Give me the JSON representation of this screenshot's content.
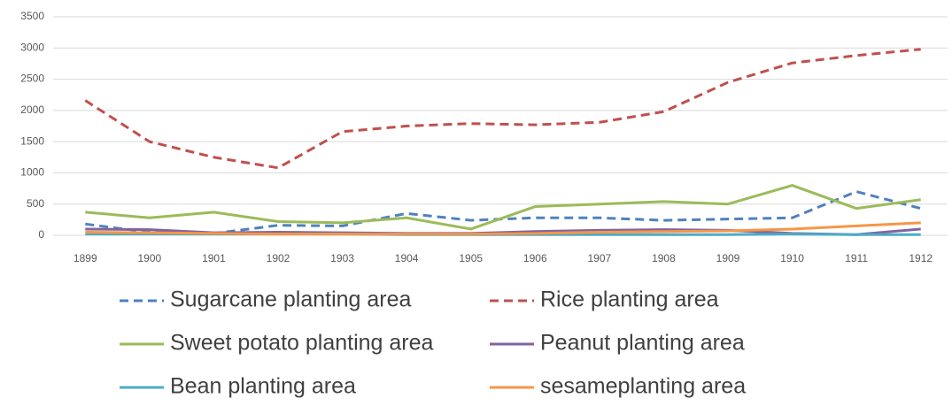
{
  "chart_data": {
    "type": "line",
    "categories": [
      "1899",
      "1900",
      "1901",
      "1902",
      "1903",
      "1904",
      "1905",
      "1906",
      "1907",
      "1908",
      "1909",
      "1910",
      "1911",
      "1912"
    ],
    "series": [
      {
        "name": "Sugarcane planting area",
        "color": "#4f81bd",
        "dashed": true,
        "values": [
          180,
          50,
          30,
          160,
          150,
          350,
          240,
          280,
          280,
          240,
          260,
          280,
          700,
          430
        ]
      },
      {
        "name": "Rice planting area",
        "color": "#c0504d",
        "dashed": true,
        "values": [
          2160,
          1500,
          1250,
          1080,
          1660,
          1750,
          1790,
          1770,
          1810,
          1980,
          2450,
          2760,
          2880,
          2980
        ]
      },
      {
        "name": "Sweet potato planting area",
        "color": "#9bbb59",
        "dashed": false,
        "values": [
          370,
          280,
          370,
          220,
          200,
          280,
          100,
          460,
          500,
          540,
          500,
          800,
          430,
          570
        ]
      },
      {
        "name": "Peanut planting area",
        "color": "#8064a2",
        "dashed": false,
        "values": [
          100,
          90,
          40,
          50,
          40,
          30,
          30,
          60,
          80,
          90,
          80,
          30,
          10,
          100
        ]
      },
      {
        "name": "Bean planting area",
        "color": "#4bacc6",
        "dashed": false,
        "values": [
          20,
          20,
          20,
          20,
          20,
          10,
          10,
          10,
          10,
          10,
          10,
          20,
          10,
          10
        ]
      },
      {
        "name": "sesameplanting area",
        "color": "#f79646",
        "dashed": false,
        "values": [
          50,
          40,
          30,
          20,
          20,
          20,
          20,
          30,
          50,
          60,
          70,
          100,
          150,
          200
        ]
      }
    ],
    "ylim": [
      0,
      3500
    ],
    "yticks": [
      0,
      500,
      1000,
      1500,
      2000,
      2500,
      3000,
      3500
    ],
    "grid": true,
    "legend": "bottom"
  }
}
